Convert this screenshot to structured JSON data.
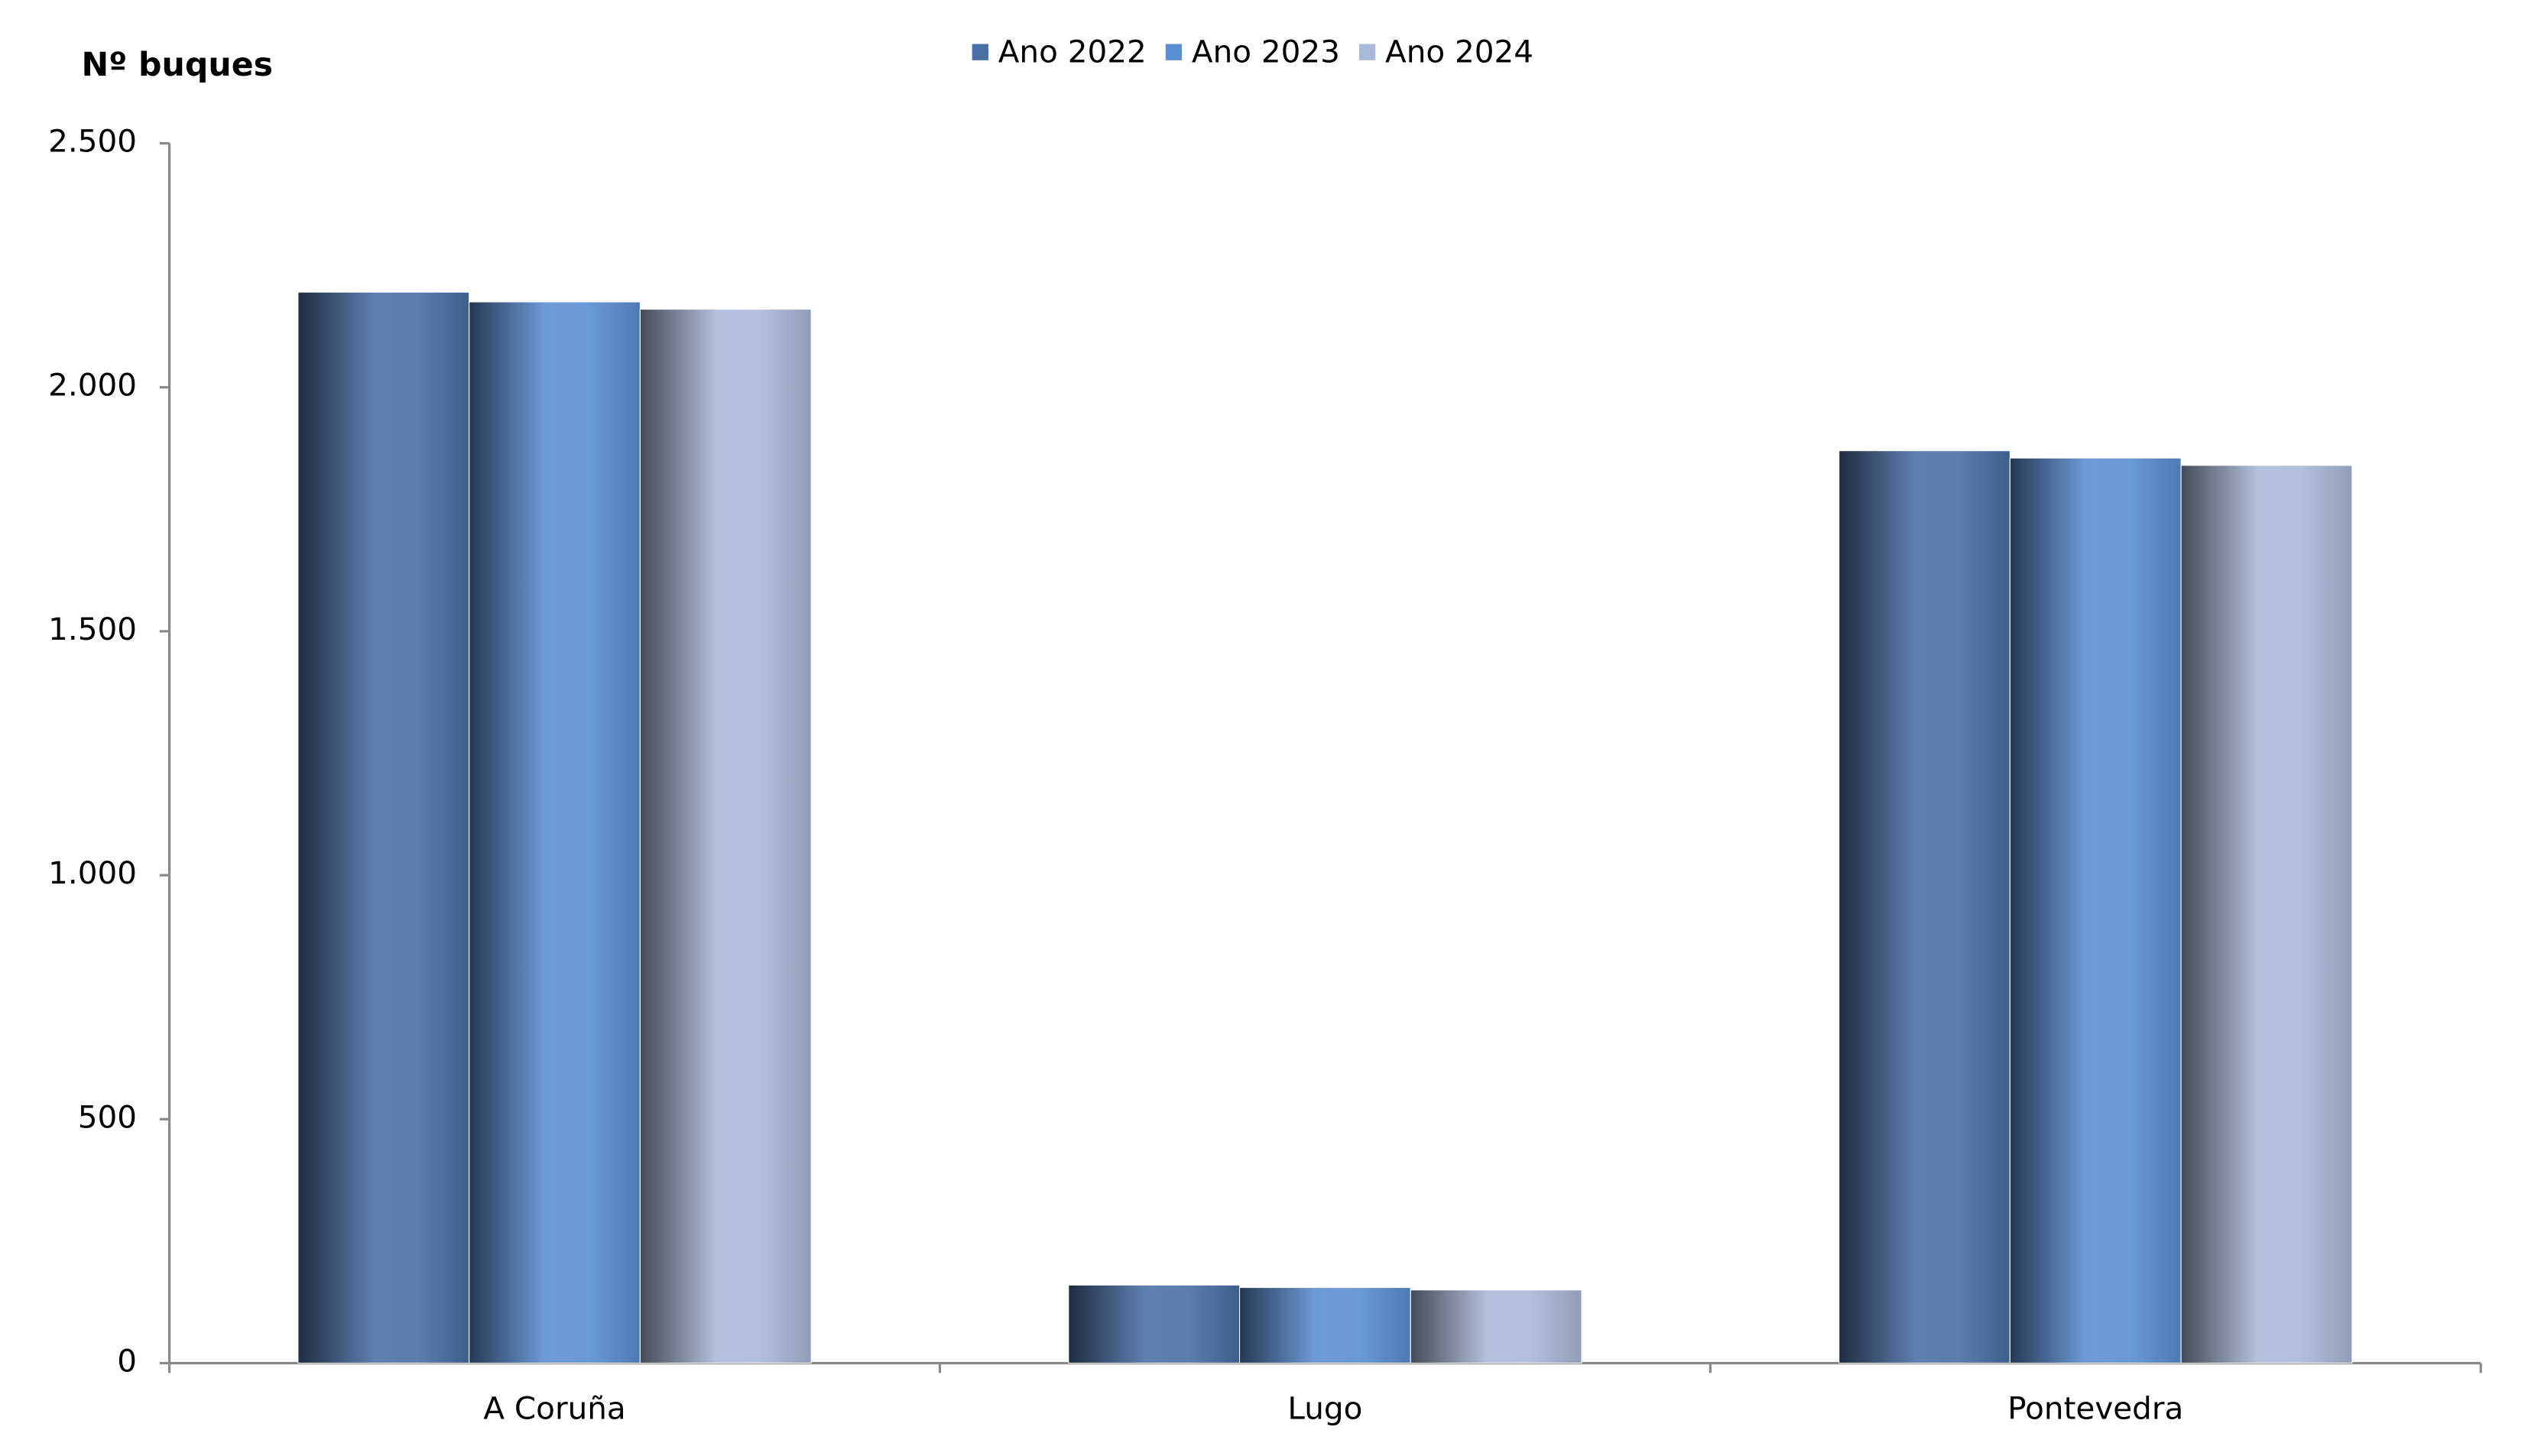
{
  "chart_data": {
    "type": "bar",
    "y_label": "Nº  buques",
    "categories": [
      "A Coruña",
      "Lugo",
      "Pontevedra"
    ],
    "series": [
      {
        "name": "Ano 2022",
        "color": "#4a6fa5",
        "values": [
          2195,
          160,
          1870
        ]
      },
      {
        "name": "Ano 2023",
        "color": "#5b8fd4",
        "values": [
          2175,
          155,
          1855
        ]
      },
      {
        "name": "Ano 2024",
        "color": "#aab9d8",
        "values": [
          2160,
          150,
          1840
        ]
      }
    ],
    "ylim": [
      0,
      2500
    ],
    "yticks": [
      0,
      500,
      {
        "value": 1000,
        "label": "1.000"
      },
      {
        "value": 1500,
        "label": "1.500"
      },
      {
        "value": 2000,
        "label": "2.000"
      },
      {
        "value": 2500,
        "label": "2.500"
      }
    ],
    "grid": false,
    "legend": "top"
  }
}
